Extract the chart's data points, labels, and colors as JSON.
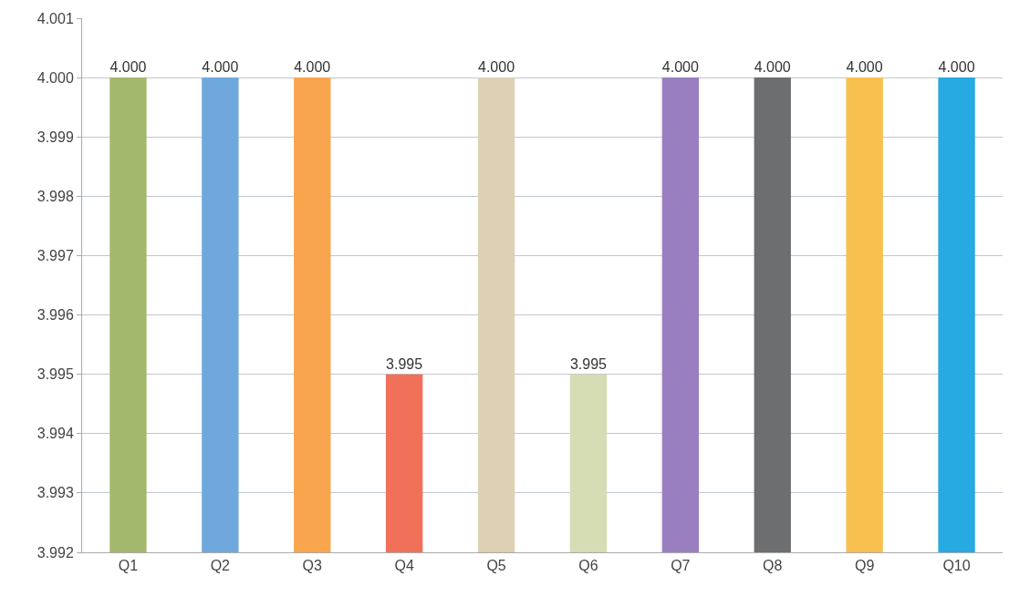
{
  "chart_data": {
    "type": "bar",
    "categories": [
      "Q1",
      "Q2",
      "Q3",
      "Q4",
      "Q5",
      "Q6",
      "Q7",
      "Q8",
      "Q9",
      "Q10"
    ],
    "values": [
      4.0,
      4.0,
      4.0,
      3.995,
      4.0,
      3.995,
      4.0,
      4.0,
      4.0,
      4.0
    ],
    "value_labels": [
      "4.000",
      "4.000",
      "4.000",
      "3.995",
      "4.000",
      "3.995",
      "4.000",
      "4.000",
      "4.000",
      "4.000"
    ],
    "colors": [
      "#a3b86c",
      "#6fa8dc",
      "#f8a54d",
      "#f0705a",
      "#ddd0b5",
      "#d6dcb4",
      "#9a7fc0",
      "#6d6e70",
      "#f8c04e",
      "#27a9e1"
    ],
    "ylim": [
      3.992,
      4.001
    ],
    "yticks": [
      "3.992",
      "3.993",
      "3.994",
      "3.995",
      "3.996",
      "3.997",
      "3.998",
      "3.999",
      "4.000",
      "4.001"
    ],
    "grid": "y",
    "legend": false
  }
}
